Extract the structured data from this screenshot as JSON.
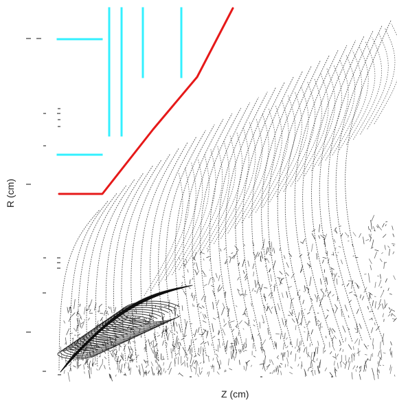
{
  "chart_data": {
    "type": "scatter",
    "xlabel": "Z (cm)",
    "ylabel": "R (cm)",
    "colors": {
      "background": "#ffffff",
      "tracks": "#111111",
      "detector_cyan": "#33f0ff",
      "boundary_red": "#e61919",
      "axis": "#111111"
    },
    "tracks": {
      "helical_arcs": 34,
      "low_pt_spiral_loops": 24,
      "scattered_segments": 900
    }
  }
}
